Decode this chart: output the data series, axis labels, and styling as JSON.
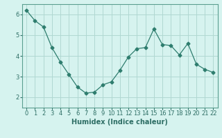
{
  "x": [
    0,
    1,
    2,
    3,
    4,
    5,
    6,
    7,
    8,
    9,
    10,
    11,
    12,
    13,
    14,
    15,
    16,
    17,
    18,
    19,
    20,
    21,
    22
  ],
  "y": [
    6.2,
    5.7,
    5.4,
    4.4,
    3.7,
    3.1,
    2.5,
    2.2,
    2.25,
    2.6,
    2.75,
    3.3,
    3.95,
    4.35,
    4.4,
    5.3,
    4.55,
    4.5,
    4.05,
    4.6,
    3.6,
    3.35,
    3.2
  ],
  "line_color": "#2e7d6e",
  "marker": "D",
  "marker_size": 2.5,
  "bg_color": "#d6f3ef",
  "grid_color": "#b0d8d2",
  "xlabel": "Humidex (Indice chaleur)",
  "xlim": [
    -0.5,
    22.5
  ],
  "ylim": [
    1.5,
    6.5
  ],
  "yticks": [
    2,
    3,
    4,
    5,
    6
  ],
  "xticks": [
    0,
    1,
    2,
    3,
    4,
    5,
    6,
    7,
    8,
    9,
    10,
    11,
    12,
    13,
    14,
    15,
    16,
    17,
    18,
    19,
    20,
    21,
    22
  ],
  "tick_fontsize": 6.0,
  "xlabel_fontsize": 7.0,
  "spine_color": "#5a9e90",
  "tick_color": "#2e6e65"
}
